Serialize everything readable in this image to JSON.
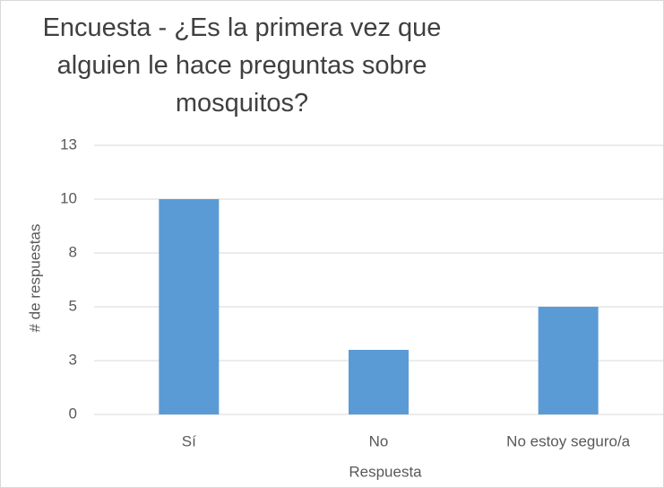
{
  "chart_data": {
    "type": "bar",
    "title": "Encuesta - ¿Es la primera vez que alguien le hace preguntas sobre mosquitos?",
    "x_label": "Respuesta",
    "y_label": "# de respuestas",
    "categories": [
      "Sí",
      "No",
      "No estoy seguro/a"
    ],
    "values": [
      10,
      3,
      5
    ],
    "color": "#5b9bd5",
    "ylim": [
      0,
      12.5
    ],
    "yticks": [
      0,
      {
        "value": 2.5,
        "label": "3"
      },
      5,
      {
        "value": 7.5,
        "label": "8"
      },
      10,
      {
        "value": 12.5,
        "label": "13"
      }
    ],
    "grid": true
  }
}
